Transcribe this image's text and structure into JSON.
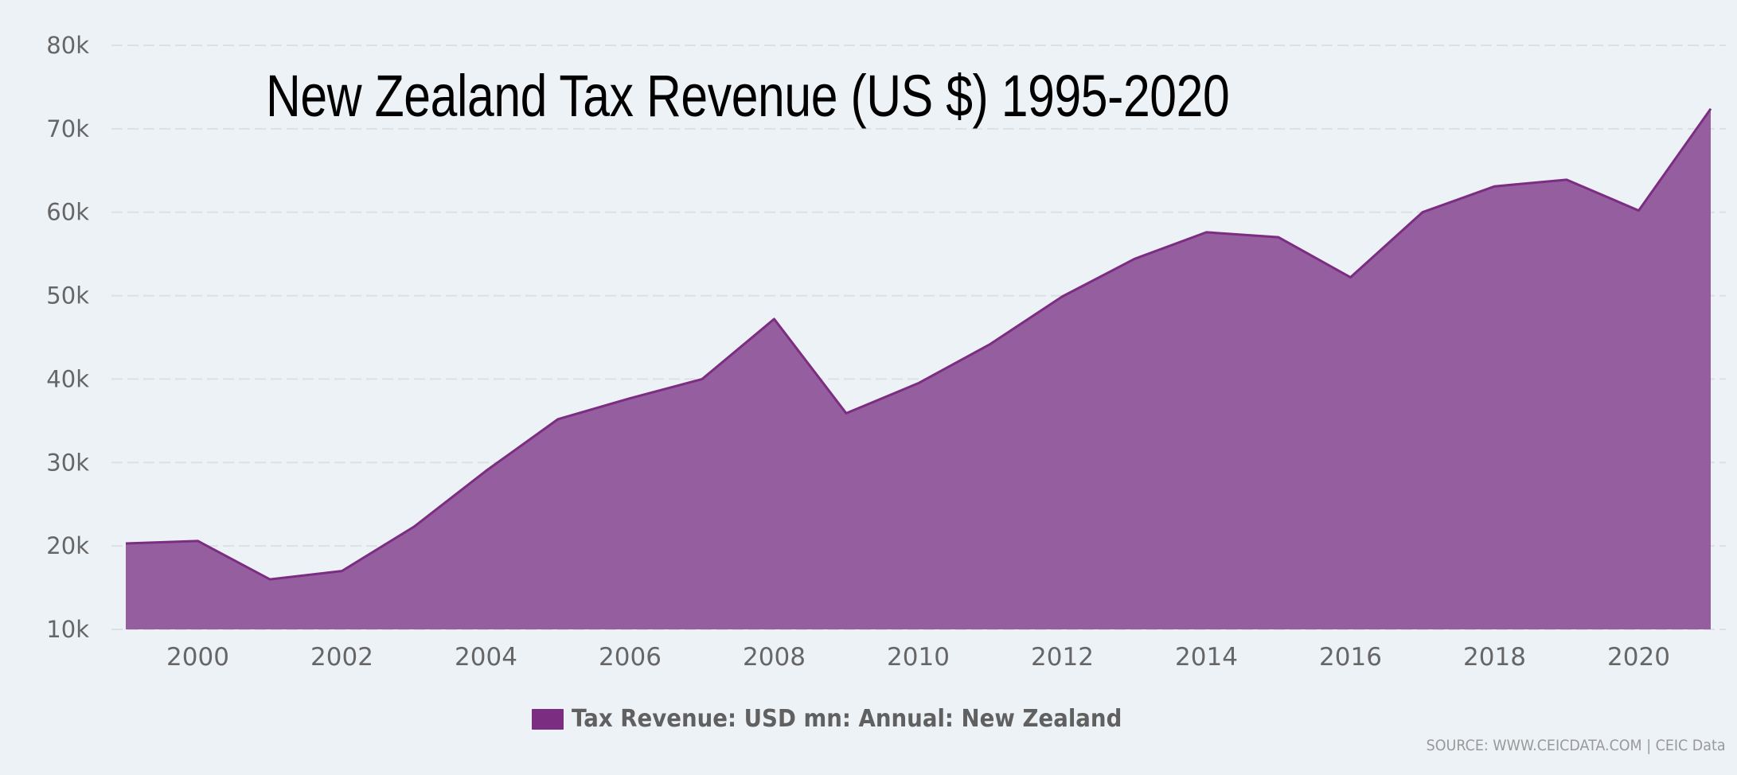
{
  "chart_data": {
    "type": "area",
    "title": "New Zealand Tax Revenue (US $) 1995-2020",
    "xlabel": "",
    "ylabel": "",
    "x": [
      1999,
      2000,
      2001,
      2002,
      2003,
      2004,
      2005,
      2006,
      2007,
      2008,
      2009,
      2010,
      2011,
      2012,
      2013,
      2014,
      2015,
      2016,
      2017,
      2018,
      2019,
      2020,
      2021
    ],
    "series": [
      {
        "name": "Tax Revenue: USD mn: Annual: New Zealand",
        "color": "#7b2d82",
        "fill": "#955e9e",
        "values": [
          20300,
          20600,
          16000,
          17000,
          22300,
          29000,
          35200,
          37700,
          40000,
          47200,
          35900,
          39500,
          44200,
          49900,
          54400,
          57600,
          57000,
          52200,
          60000,
          63100,
          63900,
          60200,
          72400
        ]
      }
    ],
    "xlim": [
      1999,
      2021
    ],
    "ylim": [
      10000,
      80000
    ],
    "y_ticks": [
      10000,
      20000,
      30000,
      40000,
      50000,
      60000,
      70000,
      80000
    ],
    "y_tick_labels": [
      "10k",
      "20k",
      "30k",
      "40k",
      "50k",
      "60k",
      "70k",
      "80k"
    ],
    "x_ticks": [
      2000,
      2002,
      2004,
      2006,
      2008,
      2010,
      2012,
      2014,
      2016,
      2018,
      2020
    ],
    "x_tick_labels": [
      "2000",
      "2002",
      "2004",
      "2006",
      "2008",
      "2010",
      "2012",
      "2014",
      "2016",
      "2018",
      "2020"
    ],
    "grid": true,
    "grid_style": "dashed horizontal",
    "legend_position": "bottom-center",
    "source_note": "SOURCE: WWW.CEICDATA.COM | CEIC Data"
  },
  "colors": {
    "background": "#edf2f7",
    "grid": "#dcdfe3",
    "axis_text": "#666666",
    "title": "#000000"
  }
}
